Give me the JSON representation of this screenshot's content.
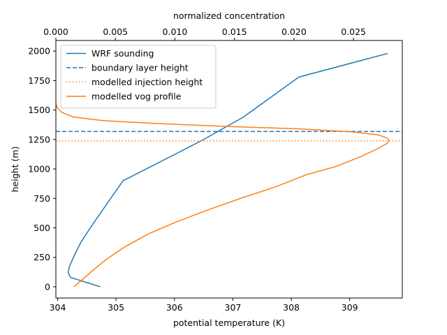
{
  "chart_data": {
    "type": "line",
    "xlabel": "potential temperature (K)",
    "x2label": "normalized concentration",
    "ylabel": "height (m)",
    "xlim": [
      303.97,
      309.9
    ],
    "x2lim": [
      0,
      0.0291
    ],
    "ylim": [
      -95,
      2090
    ],
    "xticks": [
      304,
      305,
      306,
      307,
      308,
      309
    ],
    "x2ticks": [
      0.0,
      0.005,
      0.01,
      0.015,
      0.02,
      0.025
    ],
    "x2tick_labels": [
      "0.000",
      "0.005",
      "0.010",
      "0.015",
      "0.020",
      "0.025"
    ],
    "yticks": [
      0,
      250,
      500,
      750,
      1000,
      1250,
      1500,
      1750,
      2000
    ],
    "grid": false,
    "legend_position": "upper-left",
    "colors": {
      "blue": "#1f77b4",
      "orange": "#ff7f0e"
    },
    "series": [
      {
        "name": "WRF sounding",
        "axis": "bottom",
        "style": "solid",
        "color": "#1f77b4",
        "x": [
          304.73,
          304.22,
          304.18,
          304.2,
          304.27,
          304.4,
          304.6,
          304.81,
          305.12,
          306.15,
          306.5,
          307.18,
          308.13,
          309.65
        ],
        "y": [
          0,
          80,
          120,
          170,
          250,
          380,
          530,
          680,
          900,
          1160,
          1250,
          1440,
          1780,
          1980
        ]
      },
      {
        "name": "boundary layer height",
        "style": "dashed",
        "color": "#1f77b4",
        "hline": 1318
      },
      {
        "name": "modelled injection height",
        "style": "dotted",
        "color": "#ff7f0e",
        "hline": 1238
      },
      {
        "name": "modelled vog profile",
        "axis": "top",
        "style": "solid",
        "color": "#ff7f0e",
        "x": [
          0.0015,
          0.0021,
          0.003,
          0.0042,
          0.0058,
          0.0078,
          0.0101,
          0.0127,
          0.0155,
          0.0185,
          0.021,
          0.0235,
          0.0255,
          0.027,
          0.0278,
          0.028,
          0.0278,
          0.027,
          0.0248,
          0.0205,
          0.0145,
          0.0085,
          0.004,
          0.0015,
          0.0005,
          0.0001,
          0.0
        ],
        "y": [
          0,
          50,
          130,
          230,
          340,
          450,
          550,
          650,
          750,
          850,
          950,
          1020,
          1100,
          1170,
          1215,
          1240,
          1265,
          1290,
          1315,
          1340,
          1360,
          1385,
          1410,
          1440,
          1480,
          1520,
          1560
        ]
      }
    ]
  }
}
